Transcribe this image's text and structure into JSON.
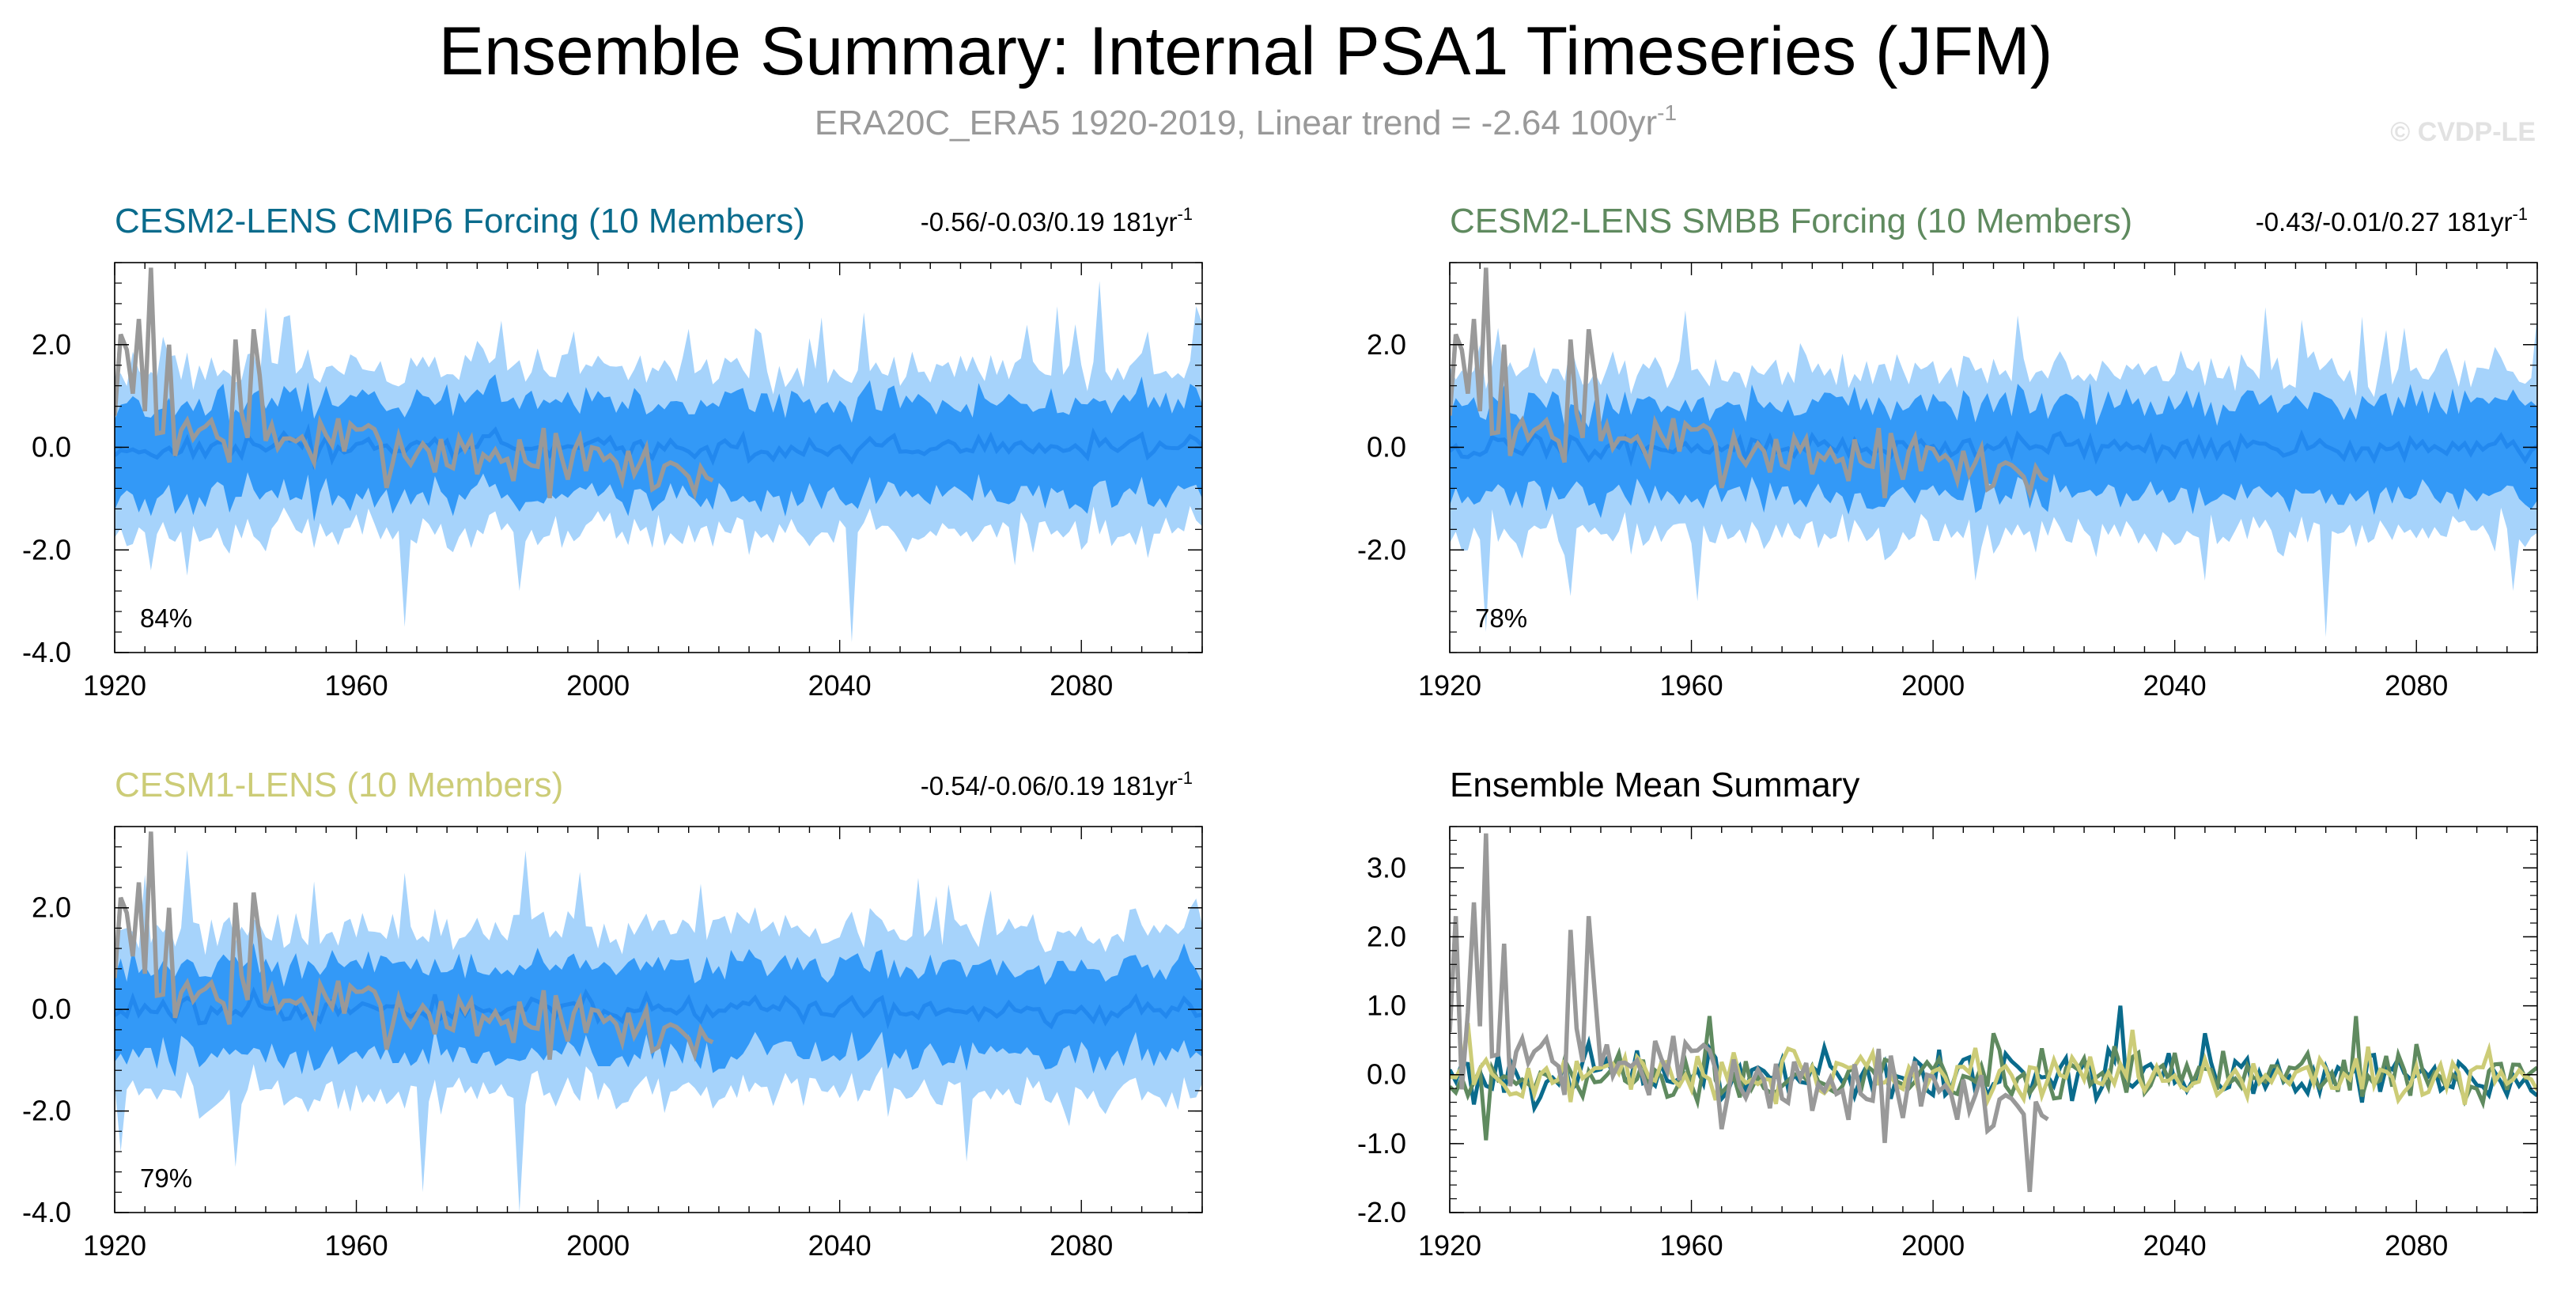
{
  "title": "Ensemble Summary: Internal PSA1 Timeseries (JFM)",
  "subtitle": {
    "text": "ERA20C_ERA5 1920-2019, Linear trend = -2.64 100yr",
    "superscript": "-1"
  },
  "watermark": "© CVDP-LE",
  "colors": {
    "obs": "#999999",
    "band_outer": "#a6d3fb",
    "band_inner": "#3399f7",
    "mean_line": "#2288ee",
    "cesm2_cmip6": "#0a6b8c",
    "cesm2_smbb": "#5f8a5f",
    "cesm1": "#cccc77"
  },
  "chart_data": [
    {
      "id": "cesm2-cmip6",
      "type": "area",
      "title": "CESM2-LENS CMIP6 Forcing (10 Members)",
      "title_color": "#0a6b8c",
      "stat": "-0.56/-0.03/0.19 181yr",
      "stat_sup": "-1",
      "percent": "84%",
      "xlim": [
        1920,
        2100
      ],
      "ylim": [
        -4.0,
        3.6
      ],
      "xticks": [
        1920,
        1960,
        2000,
        2040,
        2080
      ],
      "yticks": [
        -4.0,
        -2.0,
        0.0,
        2.0
      ],
      "ytick_labels": [
        "-4.0",
        "-2.0",
        "0.0",
        "2.0"
      ],
      "ensemble": {
        "start_year": 1920,
        "end_year": 2100,
        "outer_lo_mean": -1.35,
        "outer_hi_mean": 1.25,
        "inner_lo_mean": -0.7,
        "inner_hi_mean": 0.65,
        "mean_amp": 0.22,
        "seed": 11,
        "dips": [
          [
            1926,
            -2.4
          ],
          [
            1932,
            -2.5
          ],
          [
            1968,
            -3.5
          ],
          [
            1987,
            -2.8
          ],
          [
            2042,
            -3.8
          ],
          [
            2069,
            -2.3
          ]
        ]
      },
      "obs": {
        "start_year": 1920,
        "end_year": 2019,
        "seed": 7,
        "peaks": [
          [
            1921,
            2.2
          ],
          [
            1922,
            1.9
          ],
          [
            1924,
            2.5
          ],
          [
            1926,
            3.5
          ],
          [
            1929,
            2.0
          ],
          [
            1940,
            2.1
          ],
          [
            1943,
            2.3
          ],
          [
            1944,
            1.4
          ]
        ]
      }
    },
    {
      "id": "cesm2-smbb",
      "type": "area",
      "title": "CESM2-LENS SMBB Forcing (10 Members)",
      "title_color": "#5f8a5f",
      "stat": "-0.43/-0.01/0.27 181yr",
      "stat_sup": "-1",
      "percent": "78%",
      "xlim": [
        1920,
        2100
      ],
      "ylim": [
        -4.0,
        3.6
      ],
      "xticks": [
        1920,
        1960,
        2000,
        2040,
        2080
      ],
      "yticks": [
        -2.0,
        0.0,
        2.0
      ],
      "ytick_labels": [
        "-2.0",
        "0.0",
        "2.0"
      ],
      "ensemble": {
        "start_year": 1920,
        "end_year": 2100,
        "outer_lo_mean": -1.4,
        "outer_hi_mean": 1.2,
        "inner_lo_mean": -0.7,
        "inner_hi_mean": 0.6,
        "mean_amp": 0.2,
        "seed": 23,
        "dips": [
          [
            1926,
            -3.6
          ],
          [
            1940,
            -2.9
          ],
          [
            1961,
            -3.0
          ],
          [
            2007,
            -2.6
          ],
          [
            2045,
            -2.6
          ],
          [
            2065,
            -3.7
          ],
          [
            2096,
            -2.8
          ]
        ]
      },
      "obs": {
        "start_year": 1920,
        "end_year": 2019,
        "seed": 7,
        "peaks": [
          [
            1921,
            2.2
          ],
          [
            1922,
            1.9
          ],
          [
            1924,
            2.5
          ],
          [
            1926,
            3.5
          ],
          [
            1929,
            2.0
          ],
          [
            1940,
            2.1
          ],
          [
            1943,
            2.3
          ],
          [
            1944,
            1.4
          ]
        ]
      }
    },
    {
      "id": "cesm1",
      "type": "area",
      "title": "CESM1-LENS (10 Members)",
      "title_color": "#cccc77",
      "stat": "-0.54/-0.06/0.19 181yr",
      "stat_sup": "-1",
      "percent": "79%",
      "xlim": [
        1920,
        2100
      ],
      "ylim": [
        -4.0,
        3.6
      ],
      "xticks": [
        1920,
        1960,
        2000,
        2040,
        2080
      ],
      "yticks": [
        -4.0,
        -2.0,
        0.0,
        2.0
      ],
      "ytick_labels": [
        "-4.0",
        "-2.0",
        "0.0",
        "2.0"
      ],
      "ensemble": {
        "start_year": 1920,
        "end_year": 2100,
        "outer_lo_mean": -1.35,
        "outer_hi_mean": 1.3,
        "inner_lo_mean": -0.65,
        "inner_hi_mean": 0.6,
        "mean_amp": 0.22,
        "seed": 37,
        "dips": [
          [
            1921,
            -2.8
          ],
          [
            1940,
            -3.1
          ],
          [
            1971,
            -3.6
          ],
          [
            1987,
            -4.0
          ],
          [
            2061,
            -3.0
          ],
          [
            2078,
            -2.3
          ]
        ]
      },
      "obs": {
        "start_year": 1920,
        "end_year": 2019,
        "seed": 7,
        "peaks": [
          [
            1921,
            2.2
          ],
          [
            1922,
            1.9
          ],
          [
            1924,
            2.5
          ],
          [
            1926,
            3.5
          ],
          [
            1929,
            2.0
          ],
          [
            1940,
            2.1
          ],
          [
            1943,
            2.3
          ],
          [
            1944,
            1.4
          ]
        ]
      }
    },
    {
      "id": "ensemble-mean",
      "type": "line",
      "title": "Ensemble Mean Summary",
      "title_color": "#000000",
      "xlim": [
        1920,
        2100
      ],
      "ylim": [
        -2.0,
        3.6
      ],
      "xticks": [
        1920,
        1960,
        2000,
        2040,
        2080
      ],
      "yticks": [
        -2.0,
        -1.0,
        0.0,
        1.0,
        2.0,
        3.0
      ],
      "ytick_labels": [
        "-2.0",
        "-1.0",
        "0.0",
        "1.0",
        "2.0",
        "3.0"
      ],
      "series": [
        {
          "name": "CESM2-LENS CMIP6 Forcing",
          "color": "#0a6b8c",
          "start_year": 1920,
          "end_year": 2100,
          "amp": 0.33,
          "seed": 101,
          "spikes": [
            [
              2031,
              1.0
            ],
            [
              2045,
              0.6
            ]
          ]
        },
        {
          "name": "CESM2-LENS SMBB Forcing",
          "color": "#5f8a5f",
          "start_year": 1920,
          "end_year": 2100,
          "amp": 0.33,
          "seed": 202,
          "spikes": [
            [
              1926,
              -0.95
            ],
            [
              1963,
              0.85
            ],
            [
              2010,
              0.6
            ],
            [
              2070,
              0.85
            ]
          ]
        },
        {
          "name": "CESM1-LENS",
          "color": "#cccc77",
          "start_year": 1920,
          "end_year": 2100,
          "amp": 0.3,
          "seed": 303,
          "spikes": [
            [
              1923,
              0.75
            ],
            [
              2033,
              0.65
            ]
          ]
        }
      ],
      "obs": {
        "start_year": 1920,
        "end_year": 2019,
        "seed": 7,
        "peaks": [
          [
            1921,
            2.3
          ],
          [
            1923,
            0.9
          ],
          [
            1924,
            2.5
          ],
          [
            1926,
            3.5
          ],
          [
            1929,
            1.9
          ],
          [
            1940,
            2.1
          ],
          [
            1943,
            2.3
          ],
          [
            1944,
            1.2
          ],
          [
            2016,
            -1.7
          ]
        ]
      }
    }
  ]
}
